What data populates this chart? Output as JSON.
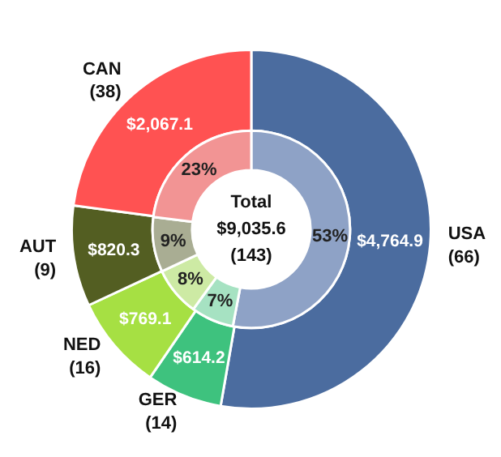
{
  "chart_data": {
    "type": "donut",
    "categories": [
      "USA\n(66)",
      "GER\n(14)",
      "NED\n(16)",
      "AUT\n(9)",
      "CAN\n(38)"
    ],
    "series": [
      {
        "values": [
          4764.9,
          614.2,
          769.1,
          820.3,
          2067.1
        ],
        "value_labels": [
          "$4,764.9",
          "$614.2",
          "$769.1",
          "$820.3",
          "$2,067.1"
        ],
        "colors": [
          "#4b6c9f",
          "#3ec27e",
          "#a6e043",
          "#535e22",
          "#ff5252"
        ]
      },
      {
        "values": [
          53,
          7,
          8,
          9,
          23
        ],
        "value_labels": [
          "53%",
          "7%",
          "8%",
          "9%",
          "23%"
        ],
        "colors": [
          "#8ea2c6",
          "#a6e2c2",
          "#cdeaa4",
          "#a9ad93",
          "#f29494"
        ]
      }
    ],
    "annotations": [
      "Total",
      "$9,035.6",
      "(143)"
    ]
  }
}
